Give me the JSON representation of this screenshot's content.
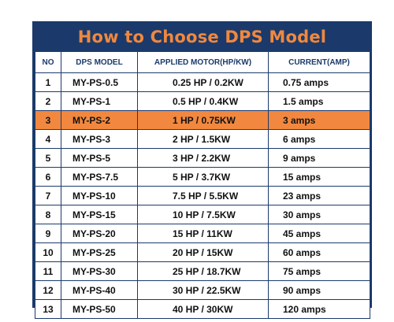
{
  "title": "How to Choose DPS Model",
  "headers": [
    "NO",
    "DPS MODEL",
    "APPLIED MOTOR(HP/KW)",
    "CURRENT(AMP)"
  ],
  "highlight_color": "#f2883f",
  "frame_color": "#1b3a6b",
  "title_color": "#f0883e",
  "rows": [
    {
      "no": "1",
      "model": "MY-PS-0.5",
      "motor": "0.25 HP / 0.2KW",
      "current": "0.75 amps"
    },
    {
      "no": "2",
      "model": "MY-PS-1",
      "motor": "0.5 HP / 0.4KW",
      "current": "1.5 amps"
    },
    {
      "no": "3",
      "model": "MY-PS-2",
      "motor": "1 HP / 0.75KW",
      "current": "3 amps"
    },
    {
      "no": "4",
      "model": "MY-PS-3",
      "motor": "2 HP / 1.5KW",
      "current": "6 amps"
    },
    {
      "no": "5",
      "model": "MY-PS-5",
      "motor": "3 HP / 2.2KW",
      "current": "9 amps"
    },
    {
      "no": "6",
      "model": "MY-PS-7.5",
      "motor": "5 HP / 3.7KW",
      "current": "15 amps"
    },
    {
      "no": "7",
      "model": "MY-PS-10",
      "motor": "7.5 HP / 5.5KW",
      "current": "23 amps"
    },
    {
      "no": "8",
      "model": "MY-PS-15",
      "motor": "10 HP / 7.5KW",
      "current": "30 amps"
    },
    {
      "no": "9",
      "model": "MY-PS-20",
      "motor": "15 HP / 11KW",
      "current": "45 amps"
    },
    {
      "no": "10",
      "model": "MY-PS-25",
      "motor": "20 HP / 15KW",
      "current": "60 amps"
    },
    {
      "no": "11",
      "model": "MY-PS-30",
      "motor": "25 HP / 18.7KW",
      "current": "75 amps"
    },
    {
      "no": "12",
      "model": "MY-PS-40",
      "motor": "30 HP / 22.5KW",
      "current": "90 amps"
    },
    {
      "no": "13",
      "model": "MY-PS-50",
      "motor": "40 HP / 30KW",
      "current": "120 amps"
    }
  ],
  "highlighted_row_no": "3"
}
